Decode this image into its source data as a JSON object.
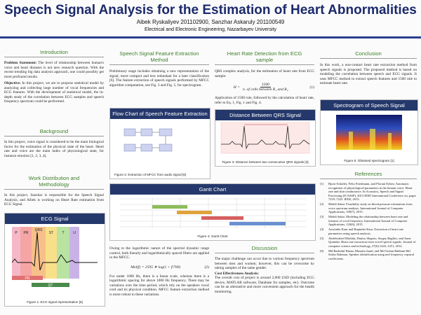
{
  "header": {
    "title": "Speech Signal Analysis for the Estimation of Heart Abnormalities",
    "authors": "Aibek Ryskaliyev 201102900, Sanzhar Askaruly 201100549",
    "affiliation": "Electrical and Electronic Engineering, Nazarbayev University"
  },
  "introduction": {
    "heading": "Introduction",
    "problem_label": "Problem Statement:",
    "problem_text": "The level of relationship between human's voice and heart diseases is not new research question. With the recent trending big data analysis approach, one could possibly get more profound results.",
    "objective_label": "Objective:",
    "objective_text": "In this project, we are to propose statistical model by analyzing and collecting large number of vocal frequencies and ECG features. With the development of statistical model, the in-depth study of the correlation between ECG samples and speech frequency spectrum could be performed."
  },
  "background": {
    "heading": "Background",
    "text": "In this project, voice signal is considered to be the main biological factor for the estimation of the physical state of the heart. Heart rate and voice are the main index of physiological state, for instance emotion [1, 2, 3, 4]."
  },
  "work_distribution": {
    "heading": "Work Distribution and Methodology",
    "text": "In this project, Sanzhar is responsible for the Speech Signal Analysis, and Aibek is working on Heart Rate estimation from ECG Signal."
  },
  "ecg_figure": {
    "heading": "ECG Signal",
    "labels": [
      "P",
      "PR",
      "QRS",
      "ST",
      "T",
      "U",
      "PR",
      "QT"
    ],
    "caption": "Figure 1: ECG signal representation [5]"
  },
  "feature_extraction": {
    "heading": "Speech Signal Feature Extraction Method",
    "text": "Preliminary stage includes obtaining a new representation of the signal, more compact and less redundant for a later classification [6]. The feature extraction of speech signals performed by MFCC algorithm computation, see Fig. 3 and Fig. 5, for spectrogram.",
    "text2": "Owing to the logarithmic nature of the spectral dynamic range control, both linearly and logarithmically spaced filters are applied in the MFCC.",
    "equation": "Mel(f) = 2595 ∗ log(1 + f/700)",
    "equation_number": "(2)",
    "text3": "For under 1000 Hz, there is a linear scale, whereas there is a logarithmic spacing for above 1000 Hz frequency. There may be variations over the time period, which rely on the speakers vocal cord and its physical condition. MFCC feature extraction method is more robust to these variations."
  },
  "flow_chart": {
    "heading": "Flow Chart of Speech Feature Extraction",
    "caption": "Figure 2: Extraction of MFCC from audio signal [6]"
  },
  "gantt_chart": {
    "heading": "Gantt Chart",
    "caption": "Figure 4: Gantt Chart"
  },
  "heart_rate": {
    "heading": "Heart Rate Detection from ECG sample",
    "text": "QRS complex analysis, for the estimation of heart rate from ECG sample:",
    "equation_lhs": "H =",
    "equation_numerator": "1500",
    "equation_denominator": "n. of cells between R₁ and R₂",
    "equation_number": "(1)",
    "text2": "Application of 1500 rule, followed by the calculation of heart rate, refer to Eq. 1, Fig. 1 and Fig. 4."
  },
  "qrs_figure": {
    "heading": "Distance Between QRS Signal",
    "caption": "Figure 3: Distance between two consecutive QRS signals [3]"
  },
  "discussion": {
    "heading": "Discussion",
    "text": "The major challenge can occur due to various frequency spectrum between men and women; however, this can be overcome by taking samples of the same gender.",
    "cost_label": "Cost Effectiveness Analysis:",
    "cost_text": "The overall cost of project is around 2,000 USD (including ECG device, MATLAB software, Database for samples, etc). Outcome can be an alternative and more convenient approach for the health monitoring."
  },
  "conclusion": {
    "heading": "Conclusion",
    "text": "In this work, a non-contact heart rate extraction method from speech signals is proposed. The proposed method is based on modeling the correlation between speech and ECG signals. It uses MFCC method to extract speech features and 1500 rule to estimate heart rate."
  },
  "spectrogram_figure": {
    "heading": "Spectrogram of Speech Signal",
    "caption": "Figure 5: Obtained spectrogram [1]"
  },
  "references": {
    "heading": "References",
    "items": [
      {
        "number": "[1]",
        "text": "Bjorn Schuller, Felix Friedmann, and Florian Eyben. Automatic recognition of physiological parameters in the human voice: Heart rate and skin conductance. In Acoustics, Speech and Signal Processing (ICASSP), 2013 IEEE International Conference on, pages 7219–7223. IEEE, 2013."
      },
      {
        "number": "[2]",
        "text": "Mehdi Sakai. Feasibility study on blood pressure estimations from voice spectrum analysis. International Journal of Computer Applications, 109(7), 2015."
      },
      {
        "number": "[3]",
        "text": "Mehdi Sakai. Modeling the relationship between heart rate and features of vocal frequency. International Journal of Computer Applications, 120(6), 2015."
      },
      {
        "number": "[4]",
        "text": "Aswinder Kaur and Rupinder Kaur. Extraction of heart rate parameters using speech analysis."
      },
      {
        "number": "[5]",
        "text": "Abdelwahed Motlabi, Dmitry Shapiro, Sergey Bagllov, and Anne Quintdai. Heart rate extraction from vowel speech signals. Journal of computer science and technology, 27(6):1243–1251, 2012."
      },
      {
        "number": "[6]",
        "text": "Md Rashidul Hasan, Mustafa Jamil, and Md Golam Rabbani Md Saifur Rahman. Speaker identification using mel frequency cepstral coefficients."
      }
    ]
  }
}
